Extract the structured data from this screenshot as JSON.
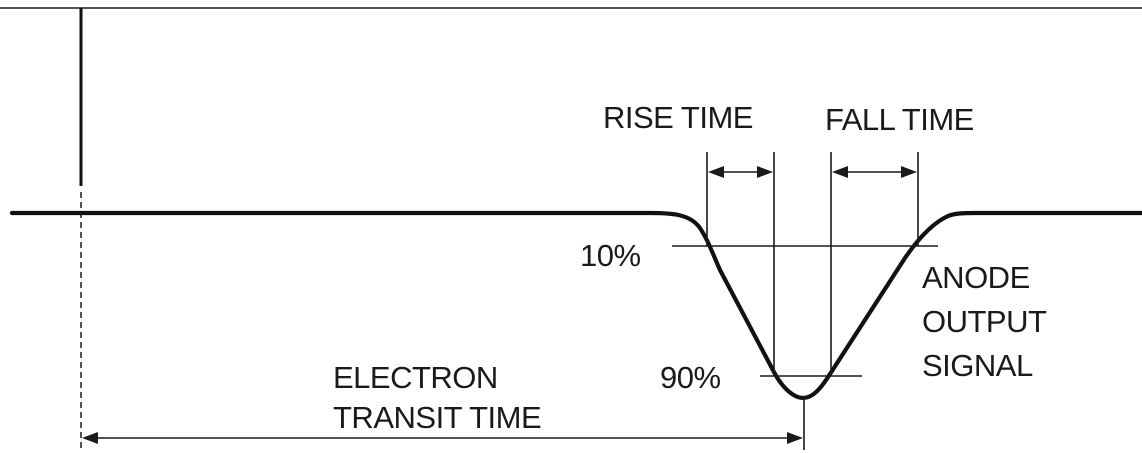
{
  "labels": {
    "rise_time": "RISE TIME",
    "fall_time": "FALL TIME",
    "ten_percent": "10%",
    "ninety_percent": "90%",
    "anode_line1": "ANODE",
    "anode_line2": "OUTPUT",
    "anode_line3": "SIGNAL",
    "electron_line1": "ELECTRON",
    "transit_line2": "TRANSIT TIME"
  },
  "colors": {
    "line": "#111111",
    "background": "#ffffff"
  }
}
